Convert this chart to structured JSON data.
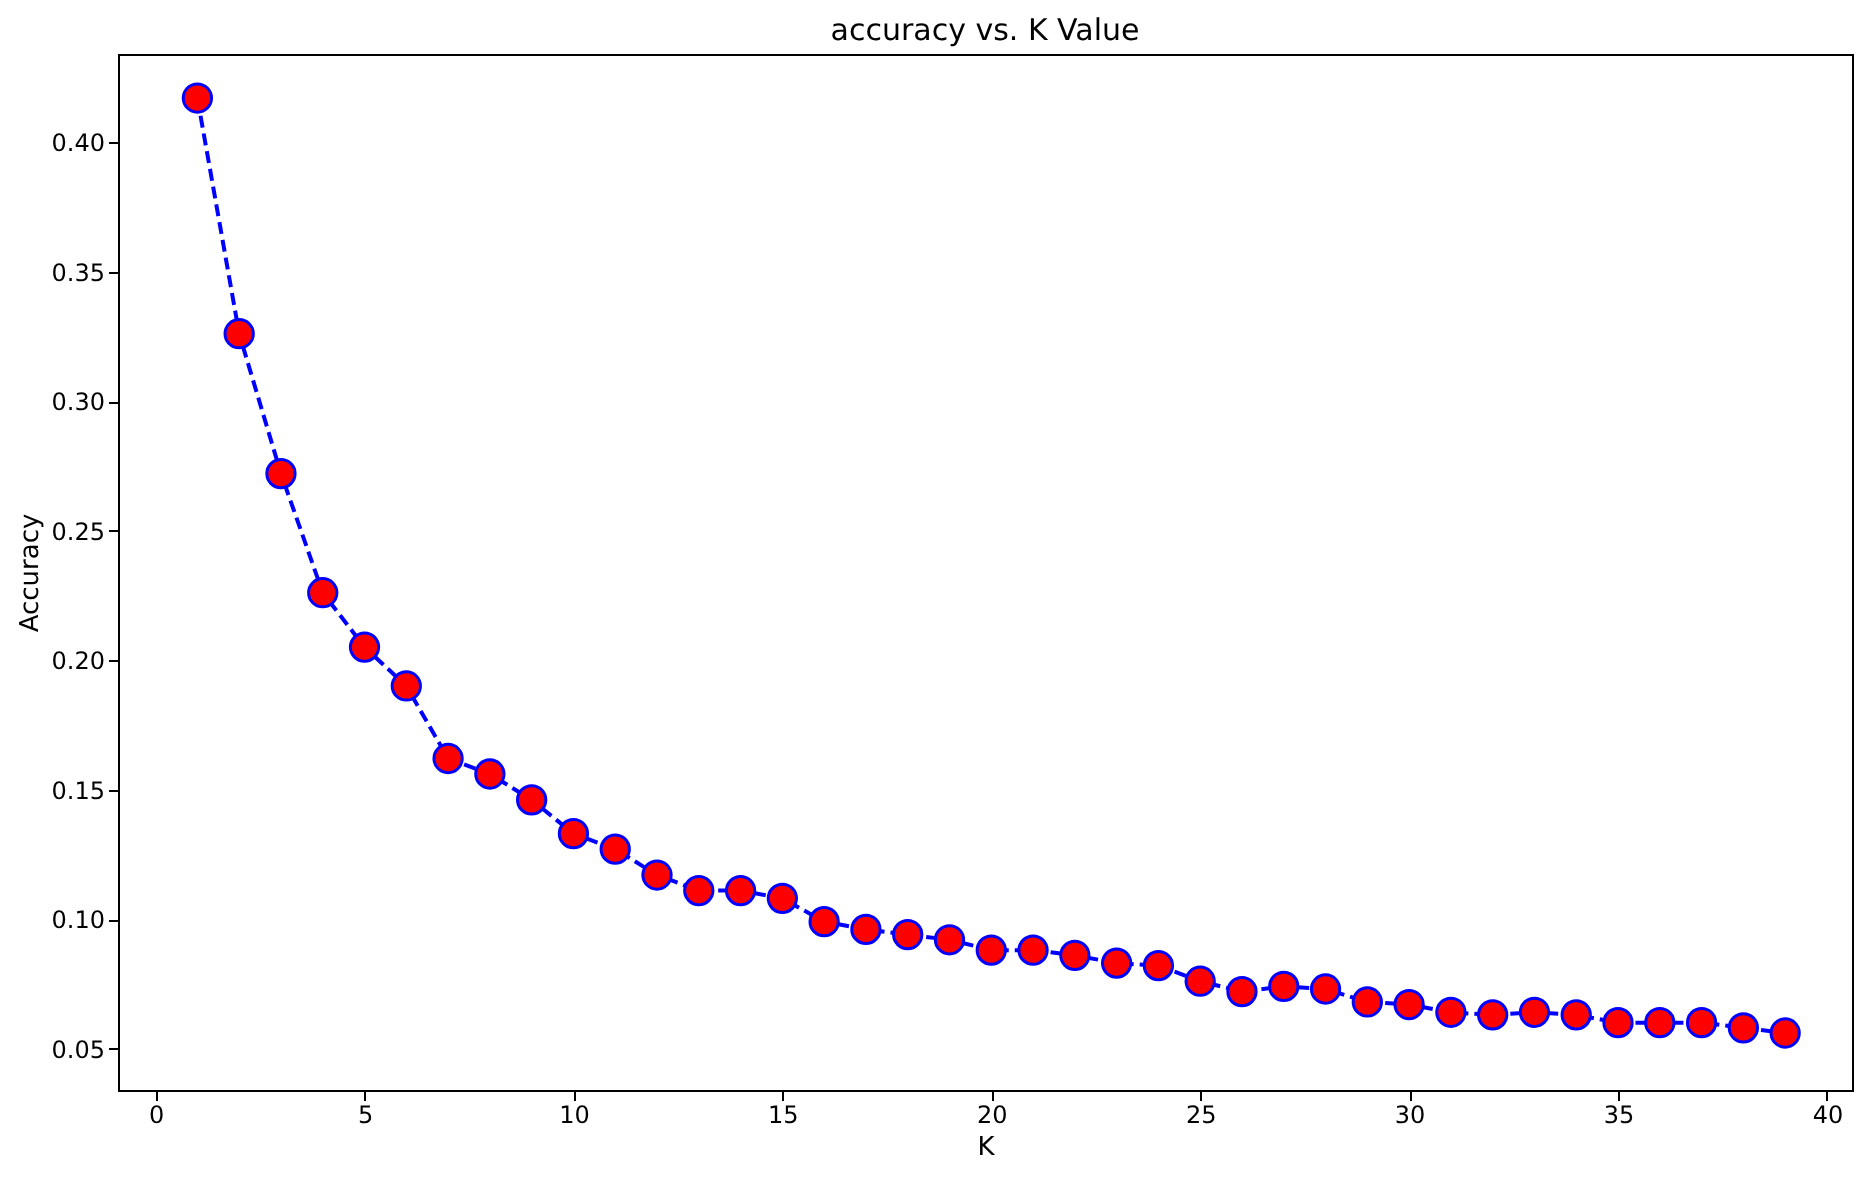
{
  "chart_data": {
    "type": "line",
    "title": "accuracy vs. K Value",
    "xlabel": "K",
    "ylabel": "Accuracy",
    "x": [
      1,
      2,
      3,
      4,
      5,
      6,
      7,
      8,
      9,
      10,
      11,
      12,
      13,
      14,
      15,
      16,
      17,
      18,
      19,
      20,
      21,
      22,
      23,
      24,
      25,
      26,
      27,
      28,
      29,
      30,
      31,
      32,
      33,
      34,
      35,
      36,
      37,
      38,
      39
    ],
    "series": [
      {
        "color": "#0000ff",
        "values": [
          0.417,
          0.326,
          0.272,
          0.226,
          0.205,
          0.19,
          0.162,
          0.156,
          0.146,
          0.133,
          0.127,
          0.117,
          0.111,
          0.111,
          0.108,
          0.099,
          0.096,
          0.094,
          0.092,
          0.088,
          0.088,
          0.086,
          0.083,
          0.082,
          0.076,
          0.072,
          0.074,
          0.073,
          0.068,
          0.067,
          0.064,
          0.063,
          0.064,
          0.063,
          0.06,
          0.06,
          0.06,
          0.058,
          0.056
        ]
      }
    ],
    "xlim": [
      -0.9,
      40.6
    ],
    "xticks": [
      0,
      5,
      10,
      15,
      20,
      25,
      30,
      35,
      40
    ],
    "ylim": [
      0.034,
      0.434
    ],
    "yticks": [
      {
        "value": 0.05,
        "label": "0.05"
      },
      {
        "value": 0.1,
        "label": "0.10"
      },
      {
        "value": 0.15,
        "label": "0.15"
      },
      {
        "value": 0.2,
        "label": "0.20"
      },
      {
        "value": 0.25,
        "label": "0.25"
      },
      {
        "value": 0.3,
        "label": "0.30"
      },
      {
        "value": 0.35,
        "label": "0.35"
      },
      {
        "value": 0.4,
        "label": "0.40"
      }
    ],
    "grid": false,
    "marker": "circle",
    "line_style": "dashed"
  }
}
